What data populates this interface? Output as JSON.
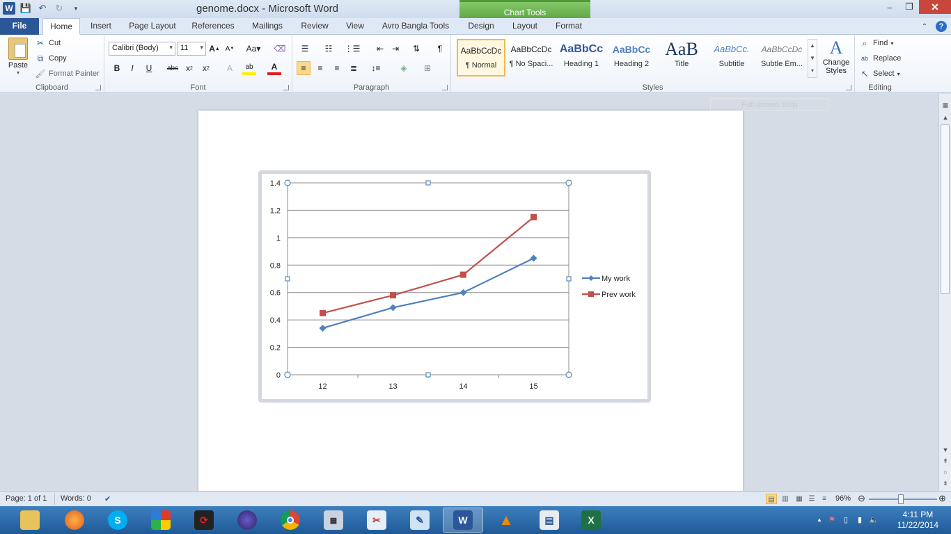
{
  "window": {
    "doc_title": "genome.docx",
    "separator": " - ",
    "app_name": "Microsoft Word",
    "context_tab_group": "Chart Tools"
  },
  "tabs": [
    "File",
    "Home",
    "Insert",
    "Page Layout",
    "References",
    "Mailings",
    "Review",
    "View",
    "Avro Bangla Tools",
    "Design",
    "Layout",
    "Format"
  ],
  "active_tab": "Home",
  "ribbon": {
    "clipboard": {
      "label": "Clipboard",
      "paste": "Paste",
      "cut": "Cut",
      "copy": "Copy",
      "format_painter": "Format Painter"
    },
    "font": {
      "label": "Font",
      "font_name": "Calibri (Body)",
      "font_size": "11"
    },
    "paragraph": {
      "label": "Paragraph"
    },
    "styles": {
      "label": "Styles",
      "items": [
        {
          "preview": "AaBbCcDc",
          "name": "¶ Normal"
        },
        {
          "preview": "AaBbCcDc",
          "name": "¶ No Spaci..."
        },
        {
          "preview": "AaBbCc",
          "name": "Heading 1"
        },
        {
          "preview": "AaBbCc",
          "name": "Heading 2"
        },
        {
          "preview": "AaB",
          "name": "Title"
        },
        {
          "preview": "AaBbCc.",
          "name": "Subtitle"
        },
        {
          "preview": "AaBbCcDc",
          "name": "Subtle Em..."
        }
      ],
      "change_styles_line1": "Change",
      "change_styles_line2": "Styles"
    },
    "editing": {
      "label": "Editing",
      "find": "Find",
      "replace": "Replace",
      "select": "Select"
    }
  },
  "snip_overlay": "Full-screen Snip",
  "chart_data": {
    "type": "line",
    "categories": [
      "12",
      "13",
      "14",
      "15"
    ],
    "series": [
      {
        "name": "My work",
        "values": [
          0.34,
          0.49,
          0.6,
          0.85
        ],
        "color": "#4f81bd",
        "marker": "diamond"
      },
      {
        "name": "Prev work",
        "values": [
          0.45,
          0.58,
          0.73,
          1.15
        ],
        "color": "#c0504d",
        "marker": "square"
      }
    ],
    "ylim": [
      0,
      1.4
    ],
    "yticks": [
      "0",
      "0.2",
      "0.4",
      "0.6",
      "0.8",
      "1",
      "1.2",
      "1.4"
    ],
    "grid": true,
    "legend": "right"
  },
  "status": {
    "page": "Page: 1 of 1",
    "words": "Words: 0",
    "zoom": "96%"
  },
  "taskbar": {
    "clock_time": "4:11 PM",
    "clock_date": "11/22/2014"
  }
}
